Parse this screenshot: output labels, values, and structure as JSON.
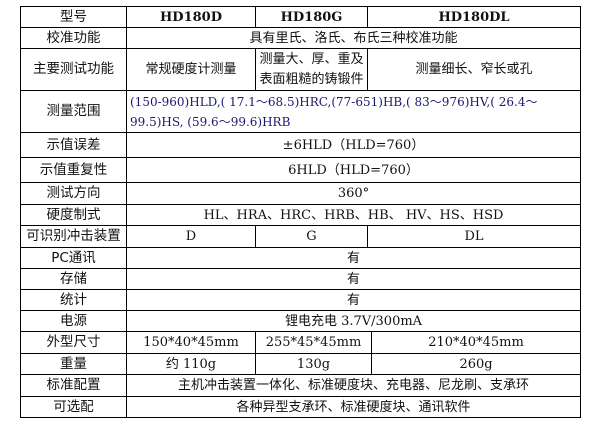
{
  "header": {
    "label": "型号",
    "models": [
      "HD180D",
      "HD180G",
      "HD180DL"
    ]
  },
  "rows": {
    "calibration": {
      "label": "校准功能",
      "value": "具有里氏、洛氏、布氏三种校准功能"
    },
    "main_function": {
      "label": "主要测试功能",
      "values": [
        "常规硬度计测量",
        "测量大、厚、重及表面粗糙的铸锻件",
        "测量细长、窄长或孔"
      ]
    },
    "range": {
      "label": "测量范围",
      "value": "(150-960)HLD,( 17.1～68.5)HRC,(77-651)HB,( 83～976)HV,( 26.4～99.5)HS, (59.6～99.6)HRB"
    },
    "error": {
      "label": "示值误差",
      "value": "±6HLD（HLD=760）"
    },
    "repeatability": {
      "label": "示值重复性",
      "value": "6HLD（HLD=760）"
    },
    "direction": {
      "label": "测试方向",
      "value": "360°"
    },
    "scales": {
      "label": "硬度制式",
      "value": "HL、HRA、HRC、HRB、HB、 HV、HS、HSD"
    },
    "impact_device": {
      "label": "可识别冲击装置",
      "values": [
        "D",
        "G",
        "DL"
      ]
    },
    "pc": {
      "label": "PC通讯",
      "value": "有"
    },
    "storage": {
      "label": "存储",
      "value": "有"
    },
    "statistics": {
      "label": "统计",
      "value": "有"
    },
    "power": {
      "label": "电源",
      "value": "锂电充电 3.7V/300mA"
    },
    "size": {
      "label": "外型尺寸",
      "values": [
        "150*40*45mm",
        "255*45*45mm",
        "210*40*45mm"
      ]
    },
    "weight": {
      "label": "重量",
      "values": [
        "约 110g",
        "130g",
        "260g"
      ]
    },
    "standard": {
      "label": "标准配置",
      "value": "主机冲击装置一体化、标准硬度块、充电器、尼龙刷、支承环"
    },
    "optional": {
      "label": "可选配",
      "value": "各种异型支承环、标准硬度块、通讯软件"
    }
  }
}
